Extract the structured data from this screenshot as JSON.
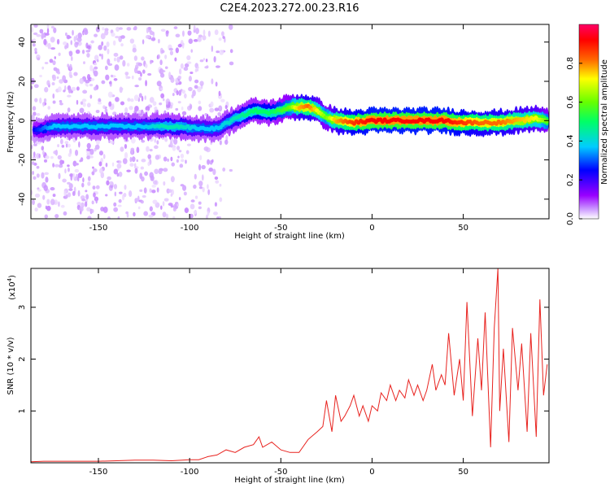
{
  "title": "C2E4.2023.272.00.23.R16",
  "chart_data": [
    {
      "type": "heatmap",
      "xlabel": "Height of straight line (km)",
      "ylabel": "Frequency (Hz)",
      "xlim": [
        -187,
        97
      ],
      "ylim": [
        -50,
        49
      ],
      "xticks": [
        -150,
        -100,
        -50,
        0,
        50
      ],
      "yticks": [
        -40,
        -20,
        0,
        20,
        40
      ],
      "colorbar": {
        "label": "Normalized spectral amplitude",
        "range": [
          0,
          1
        ],
        "ticks": [
          "0.0",
          "0.2",
          "0.4",
          "0.6",
          "0.8"
        ],
        "colors": [
          "#ffffff",
          "#cc99ff",
          "#9900ff",
          "#0000ff",
          "#00ccff",
          "#00ff66",
          "#66ff00",
          "#ffff00",
          "#ff6600",
          "#ff0000",
          "#ff0066"
        ]
      },
      "ridge": {
        "x": [
          -185,
          -175,
          -165,
          -155,
          -145,
          -135,
          -125,
          -115,
          -105,
          -95,
          -85,
          -75,
          -65,
          -55,
          -45,
          -40,
          -35,
          -30,
          -25,
          -20,
          -10,
          0,
          10,
          20,
          30,
          40,
          50,
          60,
          70,
          80,
          90,
          96
        ],
        "y": [
          -5,
          -3,
          -3,
          -3,
          -3,
          -3,
          -3,
          -3,
          -3,
          -4,
          -4,
          1,
          5,
          4,
          7,
          7,
          7,
          5,
          2,
          0,
          -1,
          0,
          0,
          0,
          0,
          0,
          -1,
          -1,
          -1,
          0,
          1,
          0
        ],
        "amplitude": [
          0.3,
          0.4,
          0.4,
          0.4,
          0.4,
          0.4,
          0.4,
          0.45,
          0.45,
          0.4,
          0.4,
          0.45,
          0.5,
          0.5,
          0.6,
          0.75,
          0.8,
          0.7,
          0.6,
          0.75,
          0.85,
          0.9,
          0.9,
          0.9,
          0.9,
          0.9,
          0.85,
          0.8,
          0.8,
          0.75,
          0.7,
          0.6
        ]
      }
    },
    {
      "type": "line",
      "xlabel": "Height of straight line (km)",
      "ylabel": "SNR (10 * v/v)",
      "multiplier": "(x10",
      "multiplier_exp": "4",
      "multiplier_close": ")",
      "xlim": [
        -187,
        97
      ],
      "ylim": [
        0,
        3.75
      ],
      "xticks": [
        -150,
        -100,
        -50,
        0,
        50
      ],
      "yticks": [
        1,
        2,
        3
      ],
      "color": "#e8221e",
      "series": [
        {
          "x": [
            -187,
            -180,
            -170,
            -160,
            -150,
            -140,
            -130,
            -120,
            -110,
            -100,
            -95,
            -90,
            -85,
            -80,
            -75,
            -70,
            -65,
            -62,
            -60,
            -55,
            -50,
            -45,
            -40,
            -35,
            -30,
            -27,
            -25,
            -22,
            -20,
            -17,
            -15,
            -12,
            -10,
            -7,
            -5,
            -2,
            0,
            3,
            5,
            8,
            10,
            13,
            15,
            18,
            20,
            23,
            25,
            28,
            30,
            33,
            35,
            38,
            40,
            42,
            45,
            48,
            50,
            52,
            55,
            58,
            60,
            62,
            65,
            67,
            69,
            70,
            72,
            75,
            77,
            80,
            82,
            85,
            87,
            90,
            92,
            94,
            96
          ],
          "y": [
            0.02,
            0.03,
            0.03,
            0.03,
            0.03,
            0.04,
            0.05,
            0.05,
            0.04,
            0.06,
            0.06,
            0.12,
            0.15,
            0.25,
            0.2,
            0.3,
            0.35,
            0.5,
            0.3,
            0.4,
            0.25,
            0.2,
            0.2,
            0.45,
            0.6,
            0.7,
            1.2,
            0.6,
            1.3,
            0.8,
            0.9,
            1.1,
            1.3,
            0.9,
            1.1,
            0.8,
            1.1,
            1.0,
            1.35,
            1.2,
            1.5,
            1.2,
            1.4,
            1.25,
            1.6,
            1.3,
            1.5,
            1.2,
            1.4,
            1.9,
            1.4,
            1.7,
            1.5,
            2.5,
            1.3,
            2.0,
            1.2,
            3.1,
            0.9,
            2.4,
            1.4,
            2.9,
            0.3,
            2.6,
            3.75,
            1.0,
            2.2,
            0.4,
            2.6,
            1.4,
            2.3,
            0.6,
            2.5,
            0.5,
            3.15,
            1.3,
            1.9
          ]
        }
      ]
    }
  ]
}
